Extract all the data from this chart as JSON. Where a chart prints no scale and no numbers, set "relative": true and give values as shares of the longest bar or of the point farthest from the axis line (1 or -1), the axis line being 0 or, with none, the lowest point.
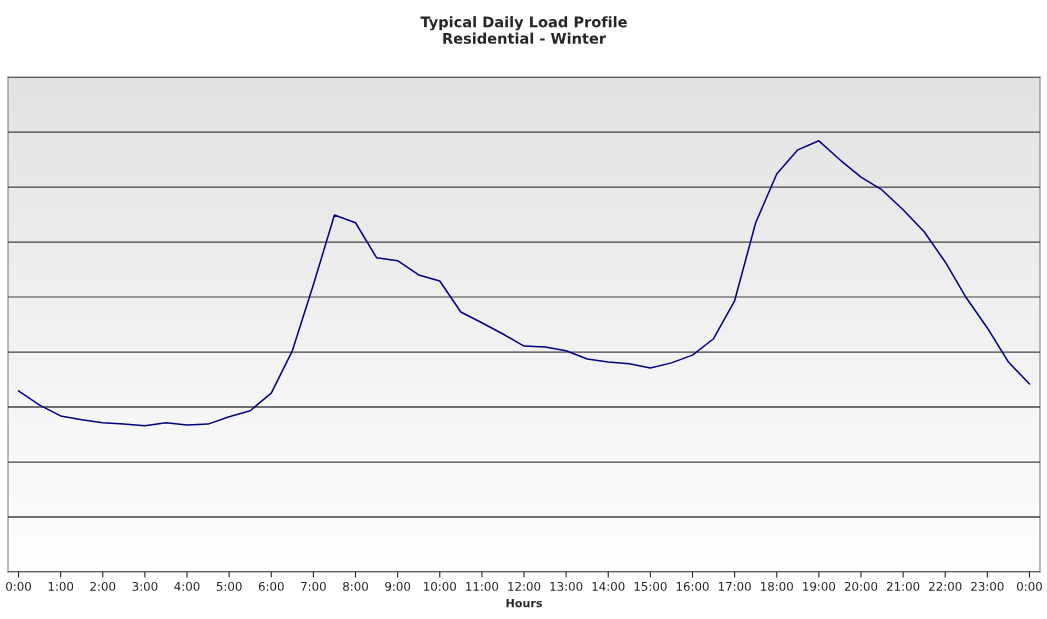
{
  "chart_data": {
    "type": "line",
    "title": "Typical Daily Load Profile\nResidential - Winter",
    "xlabel": "Hours",
    "relative": true,
    "grid": "y",
    "marker": "none",
    "line_style": "solid",
    "x": [
      0,
      0.5,
      1,
      1.5,
      2,
      2.5,
      3,
      3.5,
      4,
      4.5,
      5,
      5.5,
      6,
      6.5,
      7,
      7.5,
      8,
      8.5,
      9,
      9.5,
      10,
      10.5,
      11,
      11.5,
      12,
      12.5,
      13,
      13.5,
      14,
      14.5,
      15,
      15.5,
      16,
      16.5,
      17,
      17.5,
      18,
      18.5,
      19,
      19.5,
      20,
      20.5,
      21,
      21.5,
      22,
      22.5,
      23,
      23.5,
      24
    ],
    "xlim": [
      -0.25,
      24.25
    ],
    "xticks": [
      {
        "value": 0,
        "label": "0:00"
      },
      {
        "value": 1,
        "label": "1:00"
      },
      {
        "value": 2,
        "label": "2:00"
      },
      {
        "value": 3,
        "label": "3:00"
      },
      {
        "value": 4,
        "label": "4:00"
      },
      {
        "value": 5,
        "label": "5:00"
      },
      {
        "value": 6,
        "label": "6:00"
      },
      {
        "value": 7,
        "label": "7:00"
      },
      {
        "value": 8,
        "label": "8:00"
      },
      {
        "value": 9,
        "label": "9:00"
      },
      {
        "value": 10,
        "label": "10:00"
      },
      {
        "value": 11,
        "label": "11:00"
      },
      {
        "value": 12,
        "label": "12:00"
      },
      {
        "value": 13,
        "label": "13:00"
      },
      {
        "value": 14,
        "label": "14:00"
      },
      {
        "value": 15,
        "label": "15:00"
      },
      {
        "value": 16,
        "label": "16:00"
      },
      {
        "value": 17,
        "label": "17:00"
      },
      {
        "value": 18,
        "label": "18:00"
      },
      {
        "value": 19,
        "label": "19:00"
      },
      {
        "value": 20,
        "label": "20:00"
      },
      {
        "value": 21,
        "label": "21:00"
      },
      {
        "value": 22,
        "label": "22:00"
      },
      {
        "value": 23,
        "label": "23:00"
      },
      {
        "value": 24,
        "label": "0:00"
      }
    ],
    "series": [
      {
        "color": "#000080",
        "values": [
          0.42,
          0.387,
          0.362,
          0.353,
          0.346,
          0.343,
          0.339,
          0.346,
          0.341,
          0.343,
          0.36,
          0.374,
          0.415,
          0.513,
          0.666,
          0.828,
          0.81,
          0.729,
          0.722,
          0.689,
          0.675,
          0.603,
          0.578,
          0.552,
          0.524,
          0.522,
          0.513,
          0.494,
          0.487,
          0.483,
          0.473,
          0.485,
          0.503,
          0.541,
          0.629,
          0.81,
          0.923,
          0.979,
          1,
          0.956,
          0.916,
          0.886,
          0.84,
          0.789,
          0.719,
          0.636,
          0.566,
          0.487,
          0.436
        ]
      }
    ]
  }
}
